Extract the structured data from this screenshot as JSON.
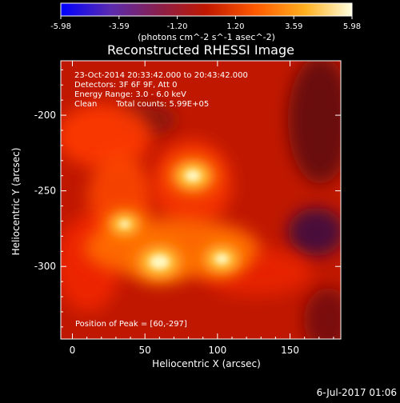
{
  "chart_data": {
    "type": "heatmap",
    "title": "Reconstructed RHESSI Image",
    "xlabel": "Heliocentric X (arcsec)",
    "ylabel": "Heliocentric Y (arcsec)",
    "xlim": [
      -8,
      185
    ],
    "ylim": [
      -348,
      -164
    ],
    "xticks": [
      0,
      50,
      100,
      150
    ],
    "yticks": [
      -200,
      -250,
      -300
    ],
    "colorbar": {
      "ticks": [
        "-5.98",
        "-3.59",
        "-1.20",
        "1.20",
        "3.59",
        "5.98"
      ],
      "range": [
        -5.98,
        5.98
      ],
      "unit_label": "(photons cm^-2 s^-1 asec^-2)",
      "colors": [
        "#0000ff",
        "#5a2bb0",
        "#8a1f4a",
        "#c01800",
        "#ff5a00",
        "#ffb020",
        "#ffffe0"
      ]
    },
    "annotations": [
      "23-Oct-2014 20:33:42.000 to 20:43:42.000",
      "Detectors: 3F 6F 9F, Att 0",
      "Energy Range: 3.0 - 6.0 keV",
      "Clean",
      "Total counts: 5.99E+05"
    ],
    "peak_label": "Position of Peak = [60,-297]",
    "peak": [
      60,
      -297
    ],
    "sources": [
      {
        "x": 60,
        "y": -297,
        "value": 5.98
      },
      {
        "x": 83,
        "y": -240,
        "value": 5.3
      },
      {
        "x": 103,
        "y": -295,
        "value": 5.0
      },
      {
        "x": 36,
        "y": -272,
        "value": 4.3
      }
    ]
  },
  "footer": {
    "date": "6-Jul-2017 01:06"
  }
}
